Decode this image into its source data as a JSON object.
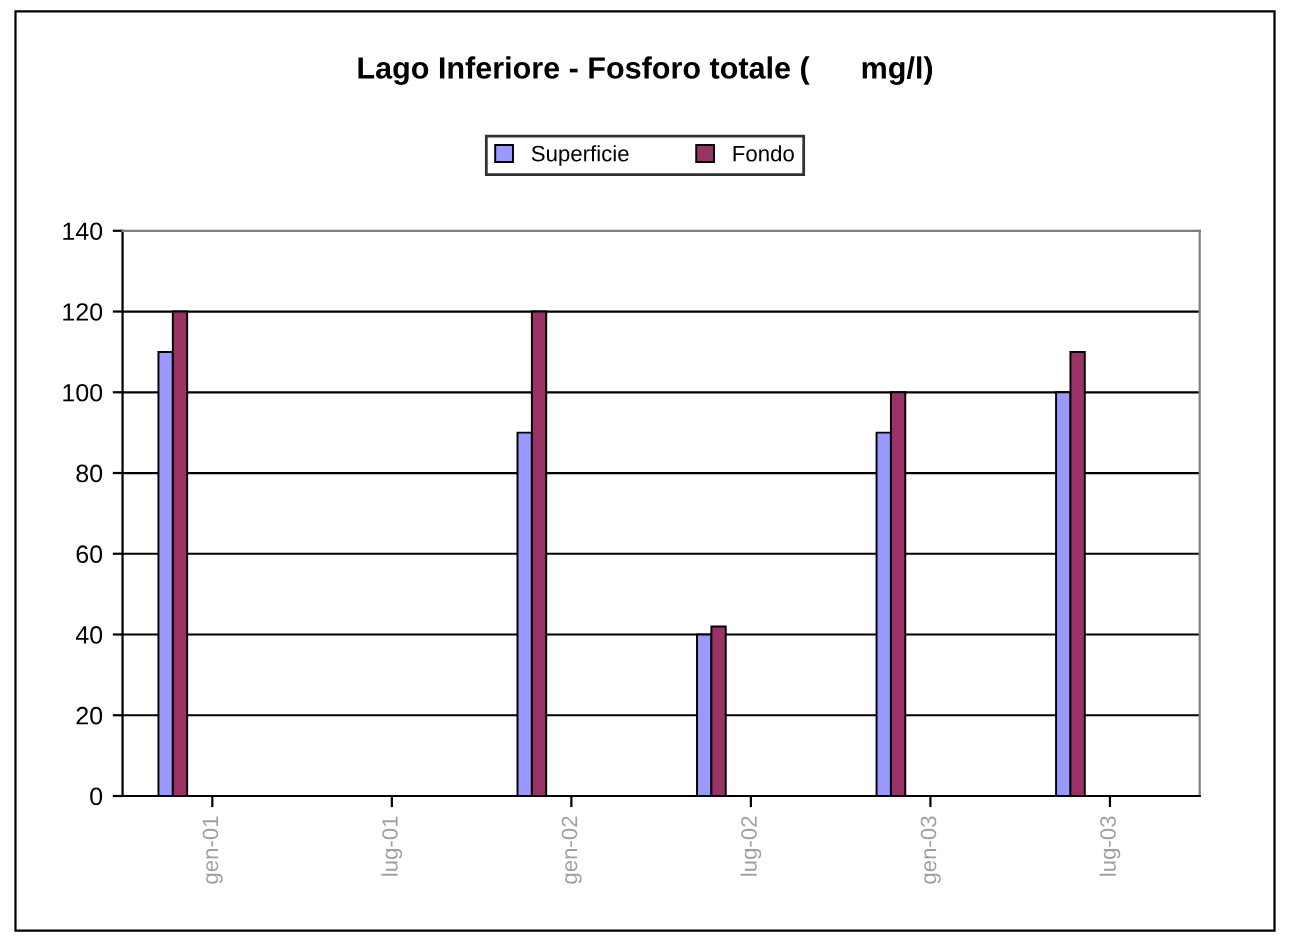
{
  "chart_data": {
    "type": "bar",
    "title": "Lago Inferiore - Fosforo totale (      mg/l)",
    "categories": [
      "gen-01",
      "lug-01",
      "gen-02",
      "lug-02",
      "gen-03",
      "lug-03"
    ],
    "series": [
      {
        "name": "Superficie",
        "color": "#9999ff",
        "values": [
          110,
          null,
          90,
          40,
          90,
          100
        ]
      },
      {
        "name": "Fondo",
        "color": "#993366",
        "values": [
          120,
          null,
          120,
          42,
          100,
          110
        ]
      }
    ],
    "ylim": [
      0,
      140
    ],
    "yticks": [
      0,
      20,
      40,
      60,
      80,
      100,
      120,
      140
    ],
    "grid": "y",
    "legend": "top"
  }
}
